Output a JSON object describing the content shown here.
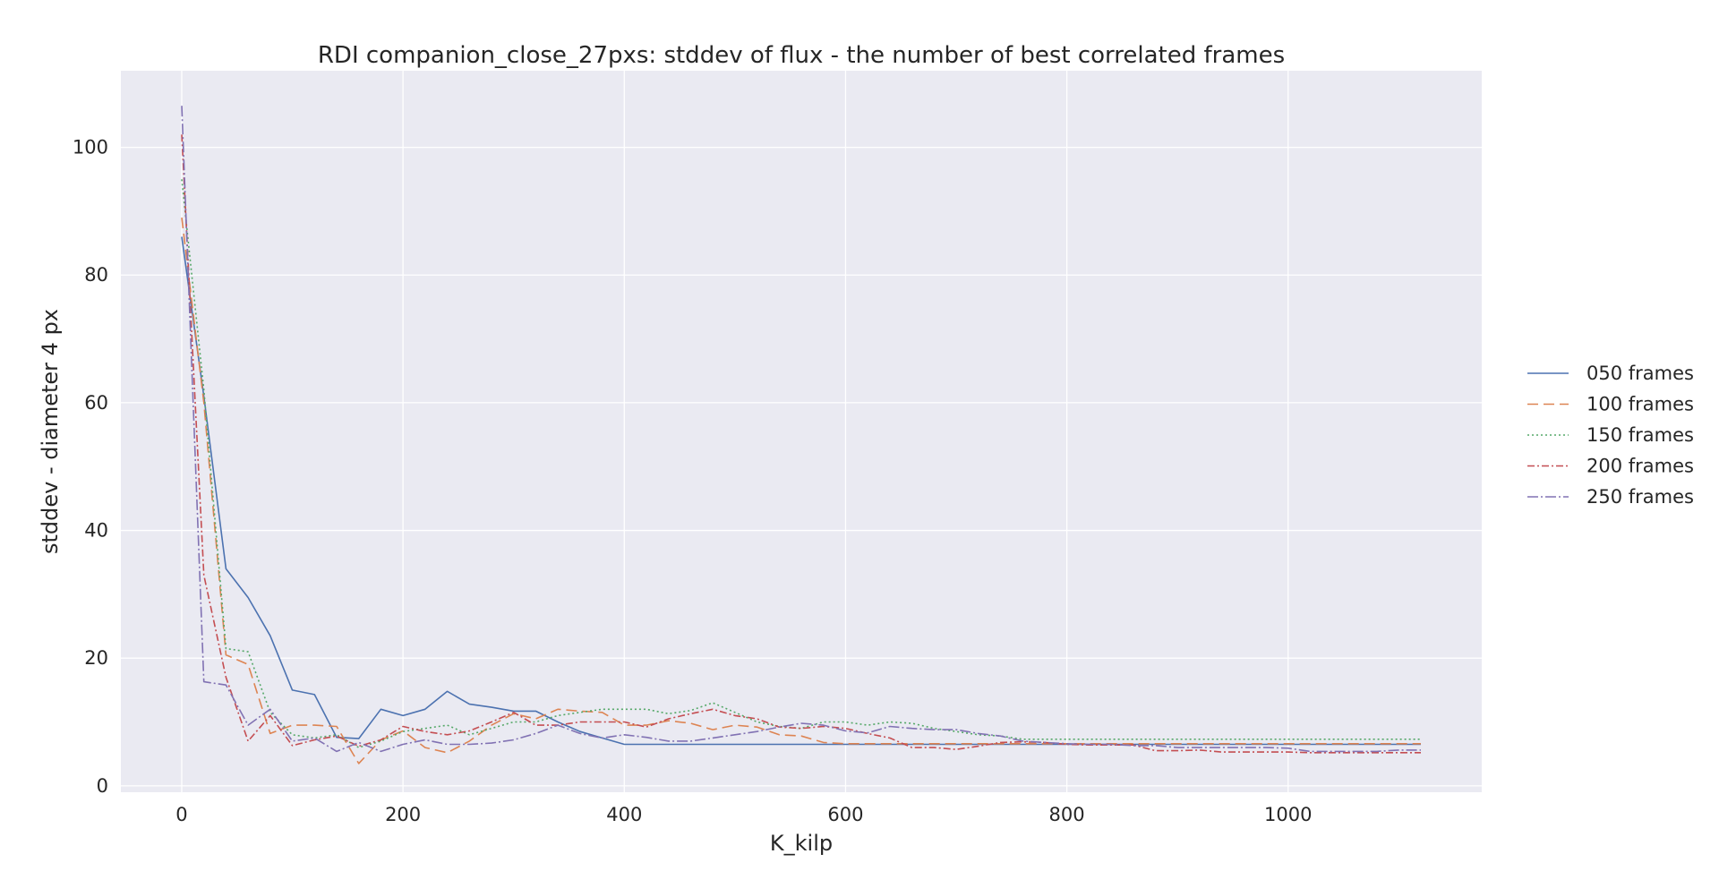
{
  "chart_data": {
    "type": "line",
    "title": "RDI companion_close_27pxs: stddev of flux - the number of best correlated frames",
    "xlabel": "K_kilp",
    "ylabel": "stddev - diameter 4 px",
    "xlim": [
      -55,
      1175
    ],
    "ylim": [
      -1,
      112
    ],
    "x_ticks": [
      0,
      200,
      400,
      600,
      800,
      1000
    ],
    "y_ticks": [
      0,
      20,
      40,
      60,
      80,
      100
    ],
    "grid": true,
    "legend_position": "right",
    "colors": {
      "background": "#eaeaf2",
      "grid": "#ffffff",
      "series": [
        "#4c72b0",
        "#dd8452",
        "#55a868",
        "#c44e52",
        "#8172b3"
      ]
    },
    "series": [
      {
        "name": "050 frames",
        "dash": "",
        "points": [
          [
            0,
            86
          ],
          [
            20,
            61
          ],
          [
            40,
            34
          ],
          [
            60,
            29.5
          ],
          [
            80,
            23.5
          ],
          [
            100,
            15
          ],
          [
            120,
            14.3
          ],
          [
            140,
            7.6
          ],
          [
            160,
            7.4
          ],
          [
            180,
            12
          ],
          [
            200,
            11
          ],
          [
            220,
            12
          ],
          [
            240,
            14.8
          ],
          [
            260,
            12.8
          ],
          [
            280,
            12.3
          ],
          [
            300,
            11.7
          ],
          [
            320,
            11.7
          ],
          [
            340,
            10
          ],
          [
            360,
            8.5
          ],
          [
            380,
            7.5
          ],
          [
            400,
            6.5
          ],
          [
            420,
            6.5
          ],
          [
            440,
            6.5
          ],
          [
            460,
            6.5
          ],
          [
            480,
            6.5
          ],
          [
            500,
            6.5
          ],
          [
            520,
            6.5
          ],
          [
            540,
            6.5
          ],
          [
            560,
            6.5
          ],
          [
            580,
            6.5
          ],
          [
            600,
            6.5
          ],
          [
            620,
            6.5
          ],
          [
            640,
            6.5
          ],
          [
            660,
            6.5
          ],
          [
            680,
            6.5
          ],
          [
            700,
            6.5
          ],
          [
            720,
            6.5
          ],
          [
            740,
            6.5
          ],
          [
            760,
            6.5
          ],
          [
            780,
            6.5
          ],
          [
            800,
            6.5
          ],
          [
            820,
            6.5
          ],
          [
            840,
            6.5
          ],
          [
            860,
            6.5
          ],
          [
            880,
            6.5
          ],
          [
            900,
            6.5
          ],
          [
            920,
            6.5
          ],
          [
            940,
            6.5
          ],
          [
            960,
            6.5
          ],
          [
            980,
            6.5
          ],
          [
            1000,
            6.5
          ],
          [
            1020,
            6.5
          ],
          [
            1040,
            6.5
          ],
          [
            1060,
            6.5
          ],
          [
            1080,
            6.5
          ],
          [
            1100,
            6.5
          ],
          [
            1120,
            6.5
          ]
        ]
      },
      {
        "name": "100 frames",
        "dash": "12 6",
        "points": [
          [
            0,
            89
          ],
          [
            20,
            60
          ],
          [
            40,
            20.5
          ],
          [
            60,
            19
          ],
          [
            80,
            8.2
          ],
          [
            100,
            9.5
          ],
          [
            120,
            9.5
          ],
          [
            140,
            9.3
          ],
          [
            160,
            3.5
          ],
          [
            180,
            7.2
          ],
          [
            200,
            8.6
          ],
          [
            220,
            6
          ],
          [
            240,
            5.2
          ],
          [
            260,
            7
          ],
          [
            280,
            9.5
          ],
          [
            300,
            11.3
          ],
          [
            320,
            10.5
          ],
          [
            340,
            12
          ],
          [
            360,
            11.7
          ],
          [
            380,
            11.5
          ],
          [
            400,
            9.5
          ],
          [
            420,
            9.5
          ],
          [
            440,
            10.2
          ],
          [
            460,
            9.8
          ],
          [
            480,
            8.8
          ],
          [
            500,
            9.5
          ],
          [
            520,
            9.2
          ],
          [
            540,
            8
          ],
          [
            560,
            7.8
          ],
          [
            580,
            6.8
          ],
          [
            600,
            6.6
          ],
          [
            620,
            6.6
          ],
          [
            640,
            6.6
          ],
          [
            660,
            6.6
          ],
          [
            680,
            6.6
          ],
          [
            700,
            6.6
          ],
          [
            720,
            6.6
          ],
          [
            740,
            6.6
          ],
          [
            760,
            6.6
          ],
          [
            780,
            6.6
          ],
          [
            800,
            6.6
          ],
          [
            820,
            6.6
          ],
          [
            840,
            6.6
          ],
          [
            860,
            6.6
          ],
          [
            880,
            6.6
          ],
          [
            900,
            6.6
          ],
          [
            920,
            6.6
          ],
          [
            940,
            6.6
          ],
          [
            960,
            6.6
          ],
          [
            980,
            6.6
          ],
          [
            1000,
            6.6
          ],
          [
            1020,
            6.6
          ],
          [
            1040,
            6.6
          ],
          [
            1060,
            6.6
          ],
          [
            1080,
            6.6
          ],
          [
            1100,
            6.6
          ],
          [
            1120,
            6.6
          ]
        ]
      },
      {
        "name": "150 frames",
        "dash": "2 3",
        "points": [
          [
            0,
            95
          ],
          [
            20,
            62
          ],
          [
            40,
            21.5
          ],
          [
            60,
            21
          ],
          [
            80,
            11.5
          ],
          [
            100,
            8
          ],
          [
            120,
            7.5
          ],
          [
            140,
            8
          ],
          [
            160,
            6
          ],
          [
            180,
            7
          ],
          [
            200,
            8.5
          ],
          [
            220,
            9
          ],
          [
            240,
            9.5
          ],
          [
            260,
            8
          ],
          [
            280,
            9
          ],
          [
            300,
            10
          ],
          [
            320,
            10
          ],
          [
            340,
            11
          ],
          [
            360,
            11.5
          ],
          [
            380,
            12
          ],
          [
            400,
            12
          ],
          [
            420,
            12
          ],
          [
            440,
            11.3
          ],
          [
            460,
            11.8
          ],
          [
            480,
            13
          ],
          [
            500,
            11.5
          ],
          [
            520,
            10
          ],
          [
            540,
            9.3
          ],
          [
            560,
            9
          ],
          [
            580,
            10
          ],
          [
            600,
            10
          ],
          [
            620,
            9.5
          ],
          [
            640,
            10
          ],
          [
            660,
            9.8
          ],
          [
            680,
            9
          ],
          [
            700,
            8.5
          ],
          [
            720,
            8
          ],
          [
            740,
            7.8
          ],
          [
            760,
            7.3
          ],
          [
            780,
            7.3
          ],
          [
            800,
            7.3
          ],
          [
            820,
            7.3
          ],
          [
            840,
            7.3
          ],
          [
            860,
            7.3
          ],
          [
            880,
            7.3
          ],
          [
            900,
            7.3
          ],
          [
            920,
            7.3
          ],
          [
            940,
            7.3
          ],
          [
            960,
            7.3
          ],
          [
            980,
            7.3
          ],
          [
            1000,
            7.3
          ],
          [
            1020,
            7.3
          ],
          [
            1040,
            7.3
          ],
          [
            1060,
            7.3
          ],
          [
            1080,
            7.3
          ],
          [
            1100,
            7.3
          ],
          [
            1120,
            7.3
          ]
        ]
      },
      {
        "name": "200 frames",
        "dash": "8 3 2 3",
        "points": [
          [
            0,
            102
          ],
          [
            20,
            33
          ],
          [
            40,
            17
          ],
          [
            60,
            7
          ],
          [
            80,
            11
          ],
          [
            100,
            6.3
          ],
          [
            120,
            7.2
          ],
          [
            140,
            7.8
          ],
          [
            160,
            6.2
          ],
          [
            180,
            7.2
          ],
          [
            200,
            9.3
          ],
          [
            220,
            8.5
          ],
          [
            240,
            8
          ],
          [
            260,
            8.6
          ],
          [
            280,
            10
          ],
          [
            300,
            11.5
          ],
          [
            320,
            9.5
          ],
          [
            340,
            9.5
          ],
          [
            360,
            10
          ],
          [
            380,
            10
          ],
          [
            400,
            10
          ],
          [
            420,
            9.2
          ],
          [
            440,
            10.5
          ],
          [
            460,
            11.3
          ],
          [
            480,
            12
          ],
          [
            500,
            11
          ],
          [
            520,
            10.5
          ],
          [
            540,
            9.2
          ],
          [
            560,
            9
          ],
          [
            580,
            9.3
          ],
          [
            600,
            9
          ],
          [
            620,
            8.2
          ],
          [
            640,
            7.5
          ],
          [
            660,
            6
          ],
          [
            680,
            6
          ],
          [
            700,
            5.7
          ],
          [
            720,
            6.2
          ],
          [
            740,
            6.8
          ],
          [
            760,
            6.9
          ],
          [
            780,
            6.8
          ],
          [
            800,
            6.5
          ],
          [
            820,
            6.4
          ],
          [
            840,
            6.4
          ],
          [
            860,
            6.4
          ],
          [
            880,
            5.5
          ],
          [
            900,
            5.5
          ],
          [
            920,
            5.6
          ],
          [
            940,
            5.3
          ],
          [
            960,
            5.3
          ],
          [
            980,
            5.3
          ],
          [
            1000,
            5.3
          ],
          [
            1020,
            5.2
          ],
          [
            1040,
            5.2
          ],
          [
            1060,
            5.2
          ],
          [
            1080,
            5.2
          ],
          [
            1100,
            5.2
          ],
          [
            1120,
            5.2
          ]
        ]
      },
      {
        "name": "250 frames",
        "dash": "12 3 2 3",
        "points": [
          [
            0,
            106.5
          ],
          [
            20,
            16.3
          ],
          [
            40,
            15.8
          ],
          [
            60,
            9.5
          ],
          [
            80,
            12
          ],
          [
            100,
            7
          ],
          [
            120,
            7.5
          ],
          [
            140,
            5.4
          ],
          [
            160,
            6.8
          ],
          [
            180,
            5.4
          ],
          [
            200,
            6.5
          ],
          [
            220,
            7.2
          ],
          [
            240,
            6.5
          ],
          [
            260,
            6.5
          ],
          [
            280,
            6.7
          ],
          [
            300,
            7.2
          ],
          [
            320,
            8.2
          ],
          [
            340,
            9.5
          ],
          [
            360,
            8.2
          ],
          [
            380,
            7.5
          ],
          [
            400,
            8
          ],
          [
            420,
            7.6
          ],
          [
            440,
            7
          ],
          [
            460,
            7
          ],
          [
            480,
            7.5
          ],
          [
            500,
            8
          ],
          [
            520,
            8.5
          ],
          [
            540,
            9.2
          ],
          [
            560,
            9.8
          ],
          [
            580,
            9.5
          ],
          [
            600,
            8.6
          ],
          [
            620,
            8.3
          ],
          [
            640,
            9.3
          ],
          [
            660,
            9
          ],
          [
            680,
            8.8
          ],
          [
            700,
            8.8
          ],
          [
            720,
            8.2
          ],
          [
            740,
            7.8
          ],
          [
            760,
            7
          ],
          [
            780,
            6.8
          ],
          [
            800,
            6.6
          ],
          [
            820,
            6.5
          ],
          [
            840,
            6.5
          ],
          [
            860,
            6.3
          ],
          [
            880,
            6.3
          ],
          [
            900,
            6
          ],
          [
            920,
            6
          ],
          [
            940,
            6
          ],
          [
            960,
            6
          ],
          [
            980,
            6
          ],
          [
            1000,
            5.9
          ],
          [
            1020,
            5.4
          ],
          [
            1040,
            5.4
          ],
          [
            1060,
            5.4
          ],
          [
            1080,
            5.4
          ],
          [
            1100,
            5.6
          ],
          [
            1120,
            5.6
          ]
        ]
      }
    ]
  }
}
